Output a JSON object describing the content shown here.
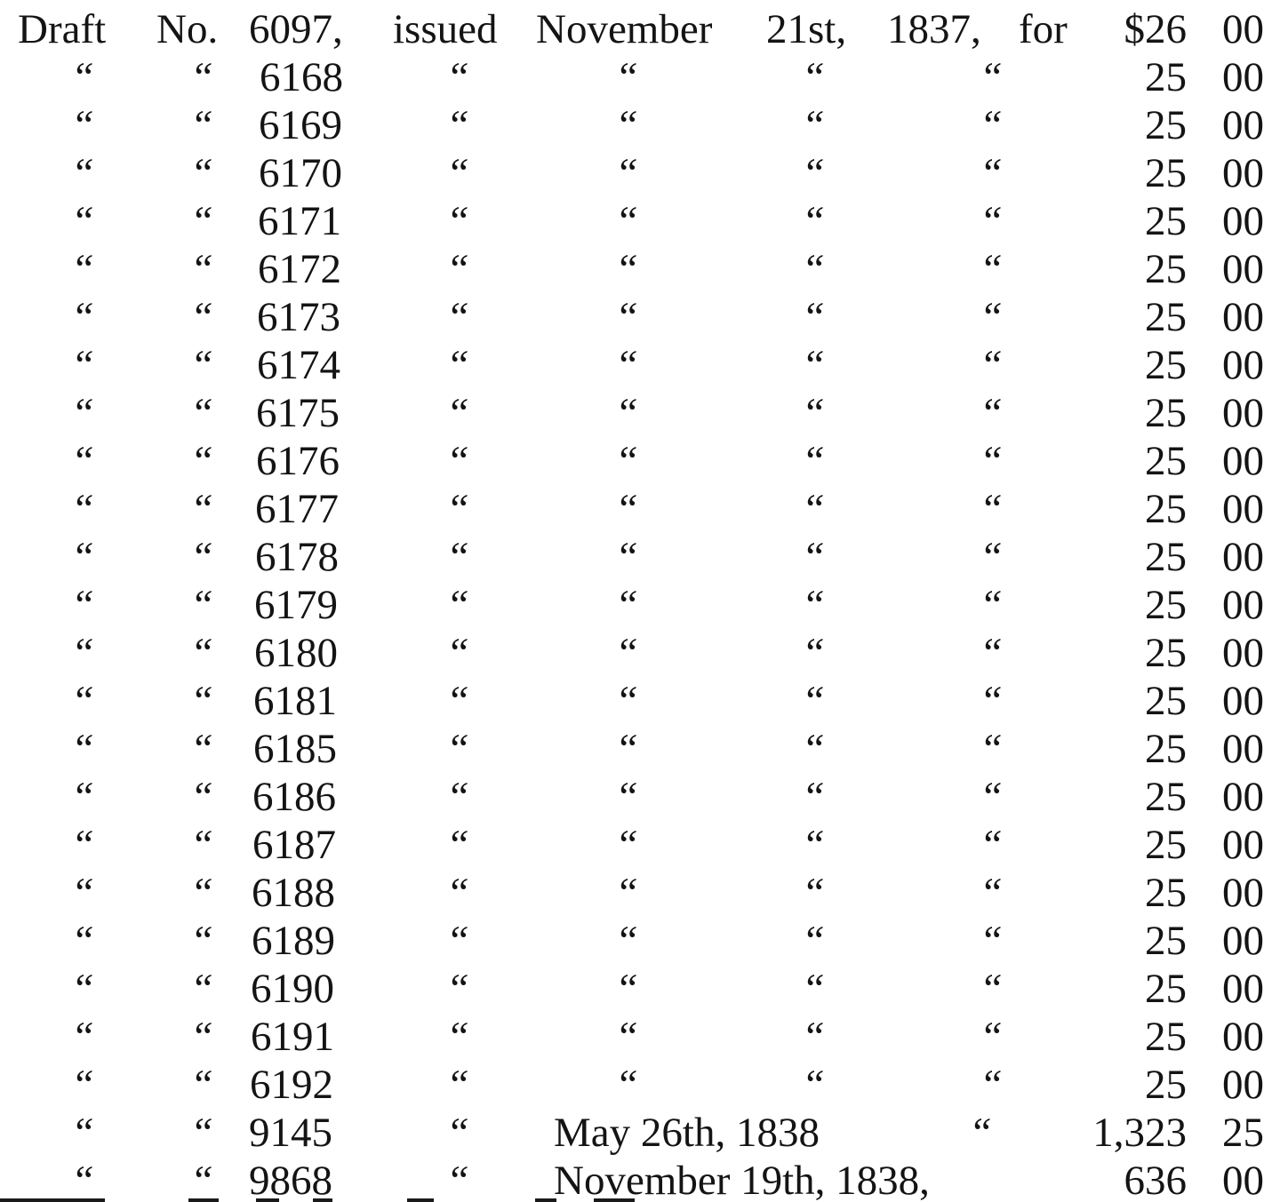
{
  "header": {
    "draft": "Draft",
    "no": "No.",
    "number": "6097,",
    "issued": "issued",
    "month": "November",
    "day": "21st,",
    "year": "1837,",
    "for": "for",
    "dollars": "$26",
    "cents": "00"
  },
  "ditto": "“",
  "rows": [
    {
      "number": "6168",
      "dollars": "25",
      "cents": "00"
    },
    {
      "number": "6169",
      "dollars": "25",
      "cents": "00"
    },
    {
      "number": "6170",
      "dollars": "25",
      "cents": "00"
    },
    {
      "number": "6171",
      "dollars": "25",
      "cents": "00"
    },
    {
      "number": "6172",
      "dollars": "25",
      "cents": "00"
    },
    {
      "number": "6173",
      "dollars": "25",
      "cents": "00"
    },
    {
      "number": "6174",
      "dollars": "25",
      "cents": "00"
    },
    {
      "number": "6175",
      "dollars": "25",
      "cents": "00"
    },
    {
      "number": "6176",
      "dollars": "25",
      "cents": "00"
    },
    {
      "number": "6177",
      "dollars": "25",
      "cents": "00"
    },
    {
      "number": "6178",
      "dollars": "25",
      "cents": "00"
    },
    {
      "number": "6179",
      "dollars": "25",
      "cents": "00"
    },
    {
      "number": "6180",
      "dollars": "25",
      "cents": "00"
    },
    {
      "number": "6181",
      "dollars": "25",
      "cents": "00"
    },
    {
      "number": "6185",
      "dollars": "25",
      "cents": "00"
    },
    {
      "number": "6186",
      "dollars": "25",
      "cents": "00"
    },
    {
      "number": "6187",
      "dollars": "25",
      "cents": "00"
    },
    {
      "number": "6188",
      "dollars": "25",
      "cents": "00"
    },
    {
      "number": "6189",
      "dollars": "25",
      "cents": "00"
    },
    {
      "number": "6190",
      "dollars": "25",
      "cents": "00"
    },
    {
      "number": "6191",
      "dollars": "25",
      "cents": "00"
    },
    {
      "number": "6192",
      "dollars": "25",
      "cents": "00"
    }
  ],
  "special_rows": [
    {
      "number": "9145",
      "date": "May 26th, 1838",
      "for_ditto": "“",
      "dollars": "1,323",
      "cents": "25"
    },
    {
      "number": "9868",
      "date": "November 19th, 1838,",
      "for_ditto": "",
      "dollars": "636",
      "cents": "00"
    }
  ]
}
